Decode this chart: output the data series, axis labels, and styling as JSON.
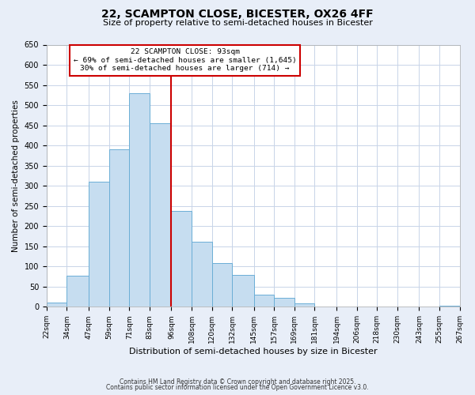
{
  "title1": "22, SCAMPTON CLOSE, BICESTER, OX26 4FF",
  "title2": "Size of property relative to semi-detached houses in Bicester",
  "xlabel": "Distribution of semi-detached houses by size in Bicester",
  "ylabel": "Number of semi-detached properties",
  "bar_edges": [
    22,
    34,
    47,
    59,
    71,
    83,
    96,
    108,
    120,
    132,
    145,
    157,
    169,
    181,
    194,
    206,
    218,
    230,
    243,
    255,
    267
  ],
  "bar_heights": [
    10,
    78,
    310,
    390,
    530,
    455,
    238,
    162,
    108,
    80,
    30,
    22,
    8,
    0,
    0,
    0,
    0,
    0,
    0,
    2
  ],
  "bar_color": "#c6ddf0",
  "bar_edge_color": "#6baed6",
  "vline_x": 96,
  "vline_color": "#cc0000",
  "annotation_title": "22 SCAMPTON CLOSE: 93sqm",
  "annotation_line1": "← 69% of semi-detached houses are smaller (1,645)",
  "annotation_line2": "30% of semi-detached houses are larger (714) →",
  "annotation_box_color": "#cc0000",
  "ylim": [
    0,
    650
  ],
  "yticks": [
    0,
    50,
    100,
    150,
    200,
    250,
    300,
    350,
    400,
    450,
    500,
    550,
    600,
    650
  ],
  "xtick_labels": [
    "22sqm",
    "34sqm",
    "47sqm",
    "59sqm",
    "71sqm",
    "83sqm",
    "96sqm",
    "108sqm",
    "120sqm",
    "132sqm",
    "145sqm",
    "157sqm",
    "169sqm",
    "181sqm",
    "194sqm",
    "206sqm",
    "218sqm",
    "230sqm",
    "243sqm",
    "255sqm",
    "267sqm"
  ],
  "footer1": "Contains HM Land Registry data © Crown copyright and database right 2025.",
  "footer2": "Contains public sector information licensed under the Open Government Licence v3.0.",
  "bg_color": "#e8eef8",
  "plot_bg_color": "#ffffff",
  "grid_color": "#c8d4e8"
}
